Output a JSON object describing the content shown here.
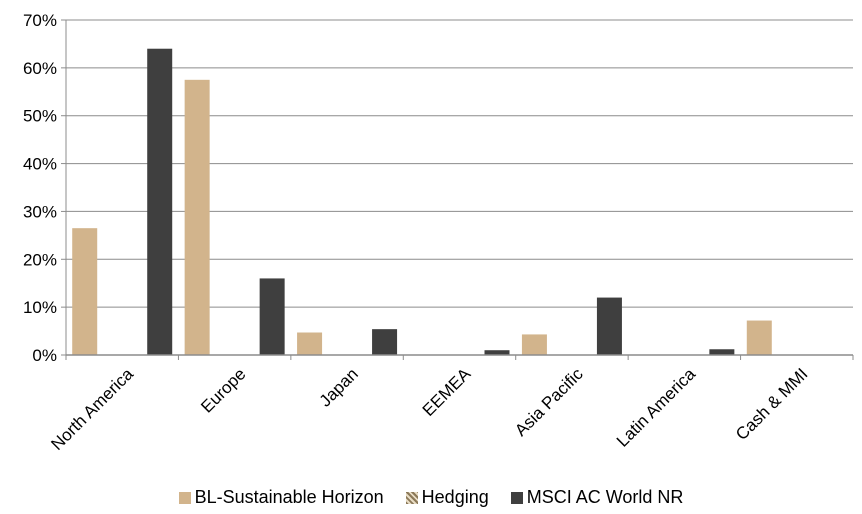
{
  "chart_data": {
    "type": "bar",
    "categories": [
      "North America",
      "Europe",
      "Japan",
      "EEMEA",
      "Asia Pacific",
      "Latin America",
      "Cash & MMI"
    ],
    "series": [
      {
        "name": "BL-Sustainable Horizon",
        "color": "#d2b48c",
        "values": [
          26.5,
          57.5,
          4.7,
          0.0,
          4.3,
          0.0,
          7.2
        ]
      },
      {
        "name": "Hedging",
        "color": "#8c7a5a",
        "values": [
          0,
          0,
          0,
          0,
          0,
          0,
          0
        ]
      },
      {
        "name": "MSCI AC World NR",
        "color": "#3f3f3f",
        "values": [
          64.0,
          16.0,
          5.4,
          1.0,
          12.0,
          1.2,
          0.0
        ]
      }
    ],
    "yticks": [
      "0%",
      "10%",
      "20%",
      "30%",
      "40%",
      "50%",
      "60%",
      "70%"
    ],
    "ylim": [
      0,
      70
    ],
    "grid": true,
    "legend_position": "bottom"
  }
}
